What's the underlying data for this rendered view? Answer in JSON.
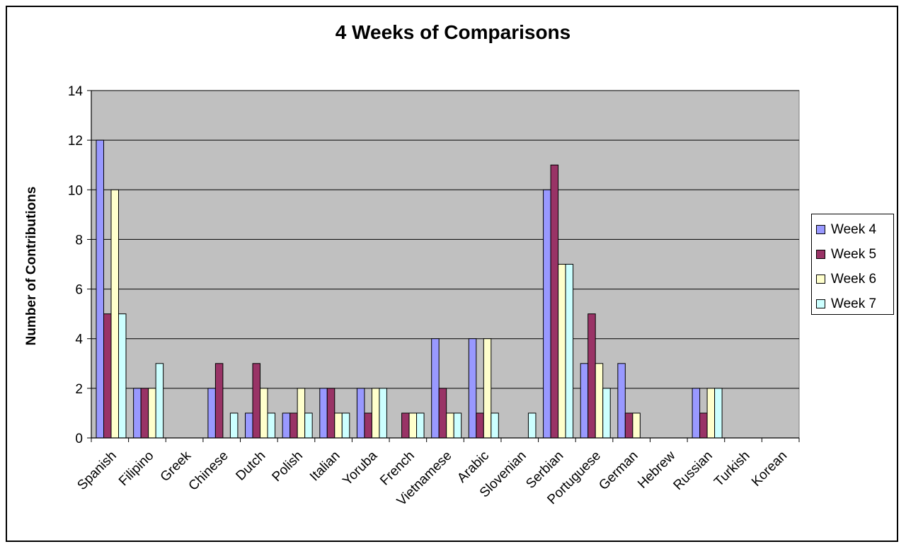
{
  "chart_data": {
    "type": "bar",
    "title": "4 Weeks of Comparisons",
    "xlabel": "",
    "ylabel": "Number of Contributions",
    "ylim": [
      0,
      14
    ],
    "yticks": [
      "0",
      "2",
      "4",
      "6",
      "8",
      "10",
      "12",
      "14"
    ],
    "grid": true,
    "legend_position": "right",
    "categories": [
      "Spanish",
      "Filipino",
      "Greek",
      "Chinese",
      "Dutch",
      "Polish",
      "Italian",
      "Yoruba",
      "French",
      "Vietnamese",
      "Arabic",
      "Slovenian",
      "Serbian",
      "Portuguese",
      "German",
      "Hebrew",
      "Russian",
      "Turkish",
      "Korean"
    ],
    "series": [
      {
        "name": "Week 4",
        "color": "#9999ff",
        "values": [
          12,
          2,
          0,
          2,
          1,
          1,
          2,
          2,
          0,
          4,
          4,
          0,
          10,
          3,
          3,
          0,
          2,
          0,
          0
        ]
      },
      {
        "name": "Week 5",
        "color": "#993366",
        "values": [
          5,
          2,
          0,
          3,
          3,
          1,
          2,
          1,
          1,
          2,
          1,
          0,
          11,
          5,
          1,
          0,
          1,
          0,
          0
        ]
      },
      {
        "name": "Week 6",
        "color": "#ffffcc",
        "values": [
          10,
          2,
          0,
          0,
          2,
          2,
          1,
          2,
          1,
          1,
          4,
          0,
          7,
          3,
          1,
          0,
          2,
          0,
          0
        ]
      },
      {
        "name": "Week 7",
        "color": "#ccffff",
        "values": [
          5,
          3,
          0,
          1,
          1,
          1,
          1,
          2,
          1,
          1,
          1,
          1,
          7,
          2,
          0,
          0,
          2,
          0,
          0
        ]
      }
    ],
    "plot_background": "#c0c0c0"
  }
}
